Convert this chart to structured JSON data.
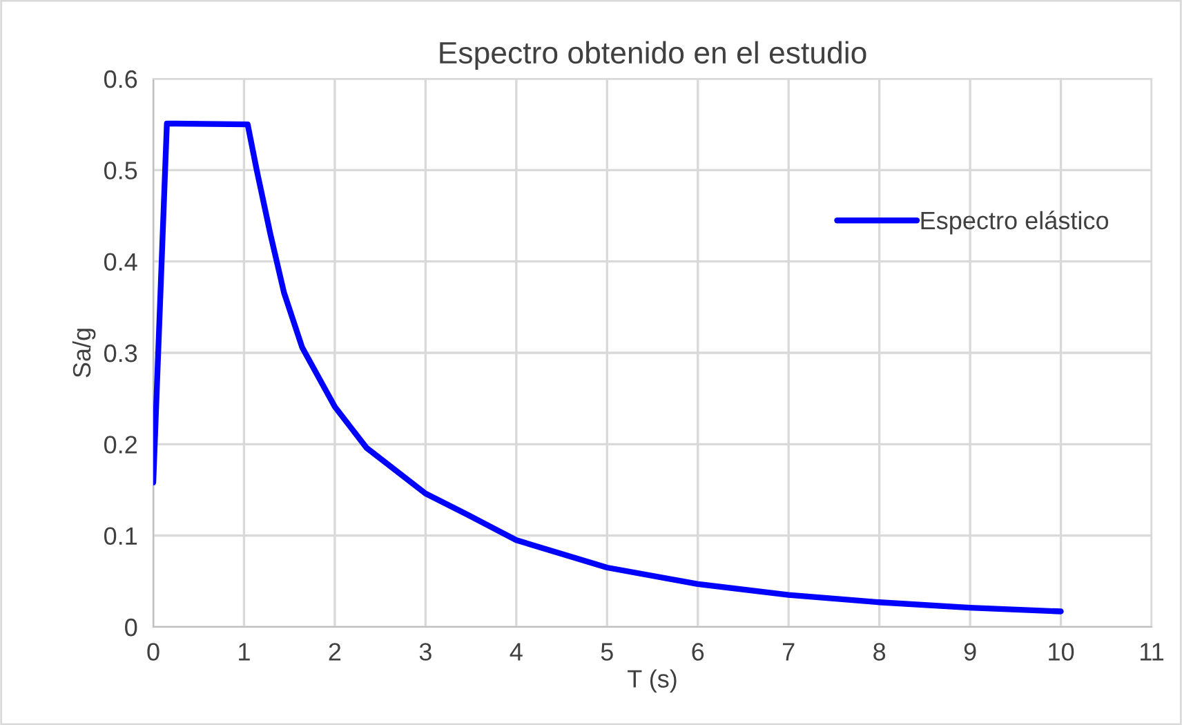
{
  "chart_data": {
    "type": "line",
    "title": "Espectro obtenido en el estudio",
    "xlabel": "T (s)",
    "ylabel": "Sa/g",
    "series": [
      {
        "name": "Espectro elástico",
        "color": "#0000ff",
        "x": [
          0,
          0.15,
          1.04,
          1.14,
          1.29,
          1.44,
          1.64,
          2.0,
          2.35,
          3.0,
          3.46,
          4.0,
          5,
          6,
          7,
          8,
          9,
          10
        ],
        "values": [
          0.158,
          0.551,
          0.55,
          0.5,
          0.43,
          0.366,
          0.306,
          0.241,
          0.196,
          0.146,
          0.123,
          0.095,
          0.065,
          0.047,
          0.035,
          0.027,
          0.021,
          0.017
        ]
      }
    ],
    "xlim": [
      0,
      11
    ],
    "xticks": [
      0,
      1,
      2,
      3,
      4,
      5,
      6,
      7,
      8,
      9,
      10,
      11
    ],
    "ylim": [
      0,
      0.6
    ],
    "yticks": [
      0,
      0.1,
      0.2,
      0.3,
      0.4,
      0.5,
      0.6
    ],
    "grid": true,
    "legend": "upper right",
    "marker": "none",
    "line_style": "solid"
  }
}
